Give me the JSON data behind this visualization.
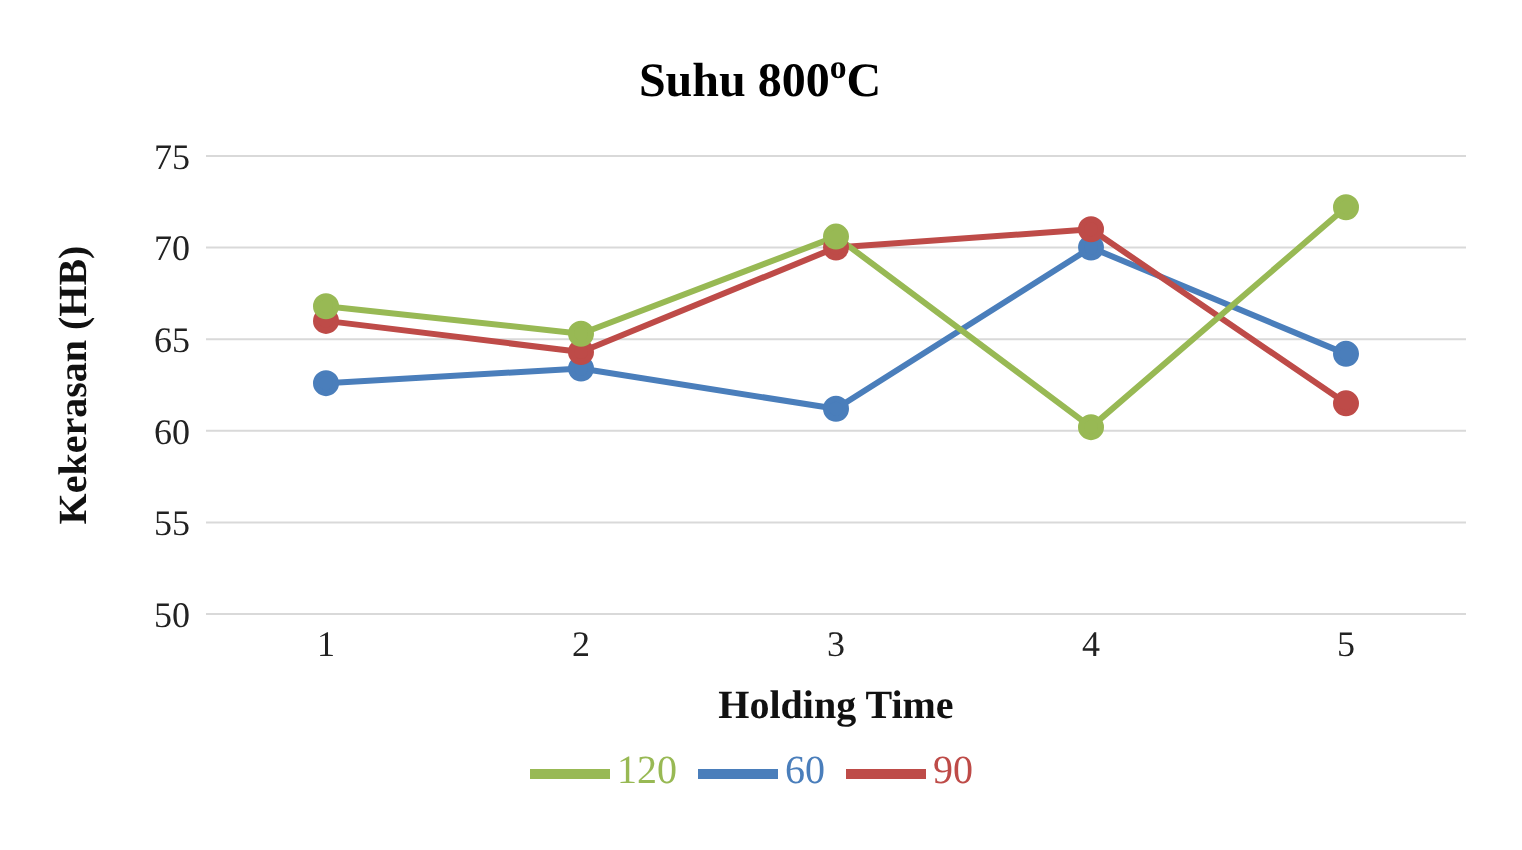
{
  "chart_data": {
    "type": "line",
    "title": "Suhu 800$^{o}$C",
    "xlabel": "Holding Time",
    "ylabel": "Kekerasan (HB)",
    "categories": [
      "1",
      "2",
      "3",
      "4",
      "5"
    ],
    "series": [
      {
        "name": "60",
        "color": "#4a7ebb",
        "values": [
          62.6,
          63.4,
          61.2,
          70,
          64.2
        ]
      },
      {
        "name": "90",
        "color": "#be4b48",
        "values": [
          66,
          64.3,
          70,
          71,
          61.5
        ]
      },
      {
        "name": "120",
        "color": "#98b954",
        "values": [
          66.8,
          65.3,
          70.6,
          60.2,
          72.2
        ]
      }
    ],
    "ylim": [
      50,
      75
    ],
    "yticks": [
      50,
      55,
      60,
      65,
      70,
      75
    ],
    "grid": "y",
    "legend": "bottom",
    "marker": "circle",
    "line_style": "solid"
  }
}
